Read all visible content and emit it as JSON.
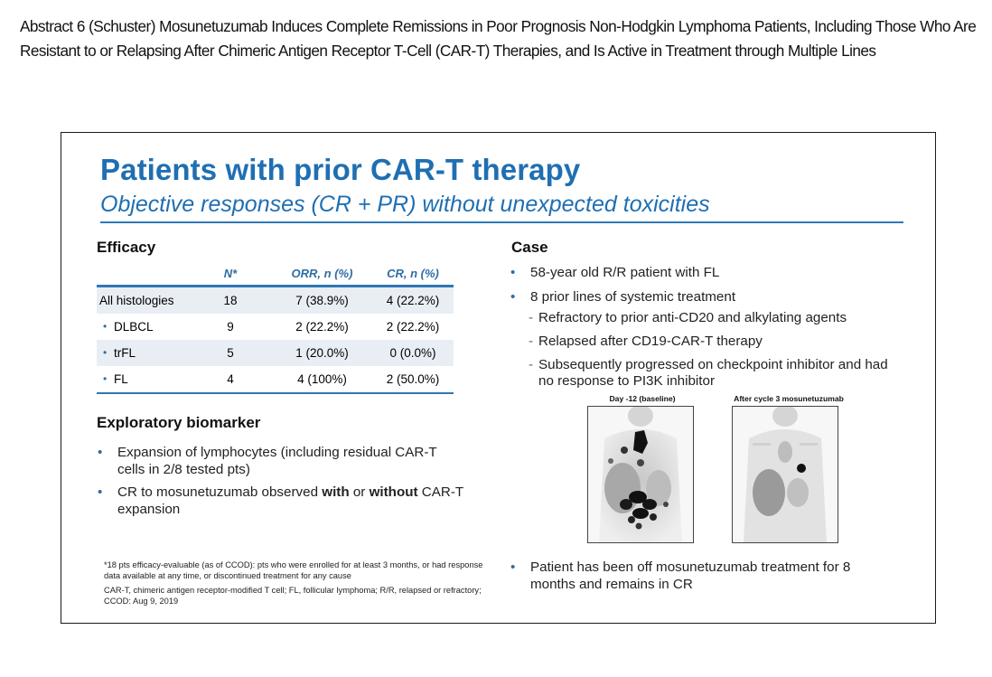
{
  "heading": "Abstract 6 (Schuster) Mosunetuzumab Induces Complete Remissions in Poor Prognosis Non-Hodgkin Lymphoma Patients, Including Those Who Are Resistant to or Relapsing After Chimeric Antigen Receptor T-Cell (CAR-T) Therapies, and Is Active in Treatment through Multiple Lines",
  "slide": {
    "title": "Patients with prior CAR-T therapy",
    "subtitle": "Objective responses (CR + PR) without unexpected toxicities",
    "accent_color": "#1f6fb2",
    "efficacy": {
      "heading": "Efficacy",
      "columns": [
        "",
        "N*",
        "ORR, n (%)",
        "CR, n (%)"
      ],
      "rows": [
        {
          "label": "All histologies",
          "n": "18",
          "orr": "7 (38.9%)",
          "cr": "4 (22.2%)",
          "sub": false
        },
        {
          "label": "DLBCL",
          "n": "9",
          "orr": "2 (22.2%)",
          "cr": "2 (22.2%)",
          "sub": true
        },
        {
          "label": "trFL",
          "n": "5",
          "orr": "1 (20.0%)",
          "cr": "0 (0.0%)",
          "sub": true
        },
        {
          "label": "FL",
          "n": "4",
          "orr": "4 (100%)",
          "cr": "2 (50.0%)",
          "sub": true
        }
      ]
    },
    "biomarker": {
      "heading": "Exploratory biomarker",
      "b1": "Expansion of lymphocytes (including residual CAR-T cells in 2/8 tested pts)",
      "b2_pre": "CR to mosunetuzumab observed ",
      "b2_with": "with",
      "b2_or": " or ",
      "b2_without": "without",
      "b2_post": " CAR-T expansion"
    },
    "footnotes": {
      "f1": "*18 pts efficacy-evaluable (as of CCOD): pts who were enrolled for at least 3 months, or had response data available at any time, or discontinued treatment for any cause",
      "f2": "CAR-T, chimeric antigen receptor-modified T cell; FL, follicular lymphoma; R/R, relapsed or refractory; CCOD: Aug 9, 2019"
    },
    "case": {
      "heading": "Case",
      "bullets": [
        "58-year old R/R patient with FL",
        "8 prior lines of systemic treatment"
      ],
      "subs": [
        "Refractory to prior anti-CD20 and alkylating agents",
        "Relapsed after CD19-CAR-T therapy",
        "Subsequently progressed on checkpoint inhibitor and had no response to PI3K inhibitor"
      ],
      "scan_baseline": "Day -12 (baseline)",
      "scan_after": "After cycle 3 mosunetuzumab",
      "final_bullet": "Patient has been off mosunetuzumab treatment for 8 months and remains in CR"
    }
  }
}
